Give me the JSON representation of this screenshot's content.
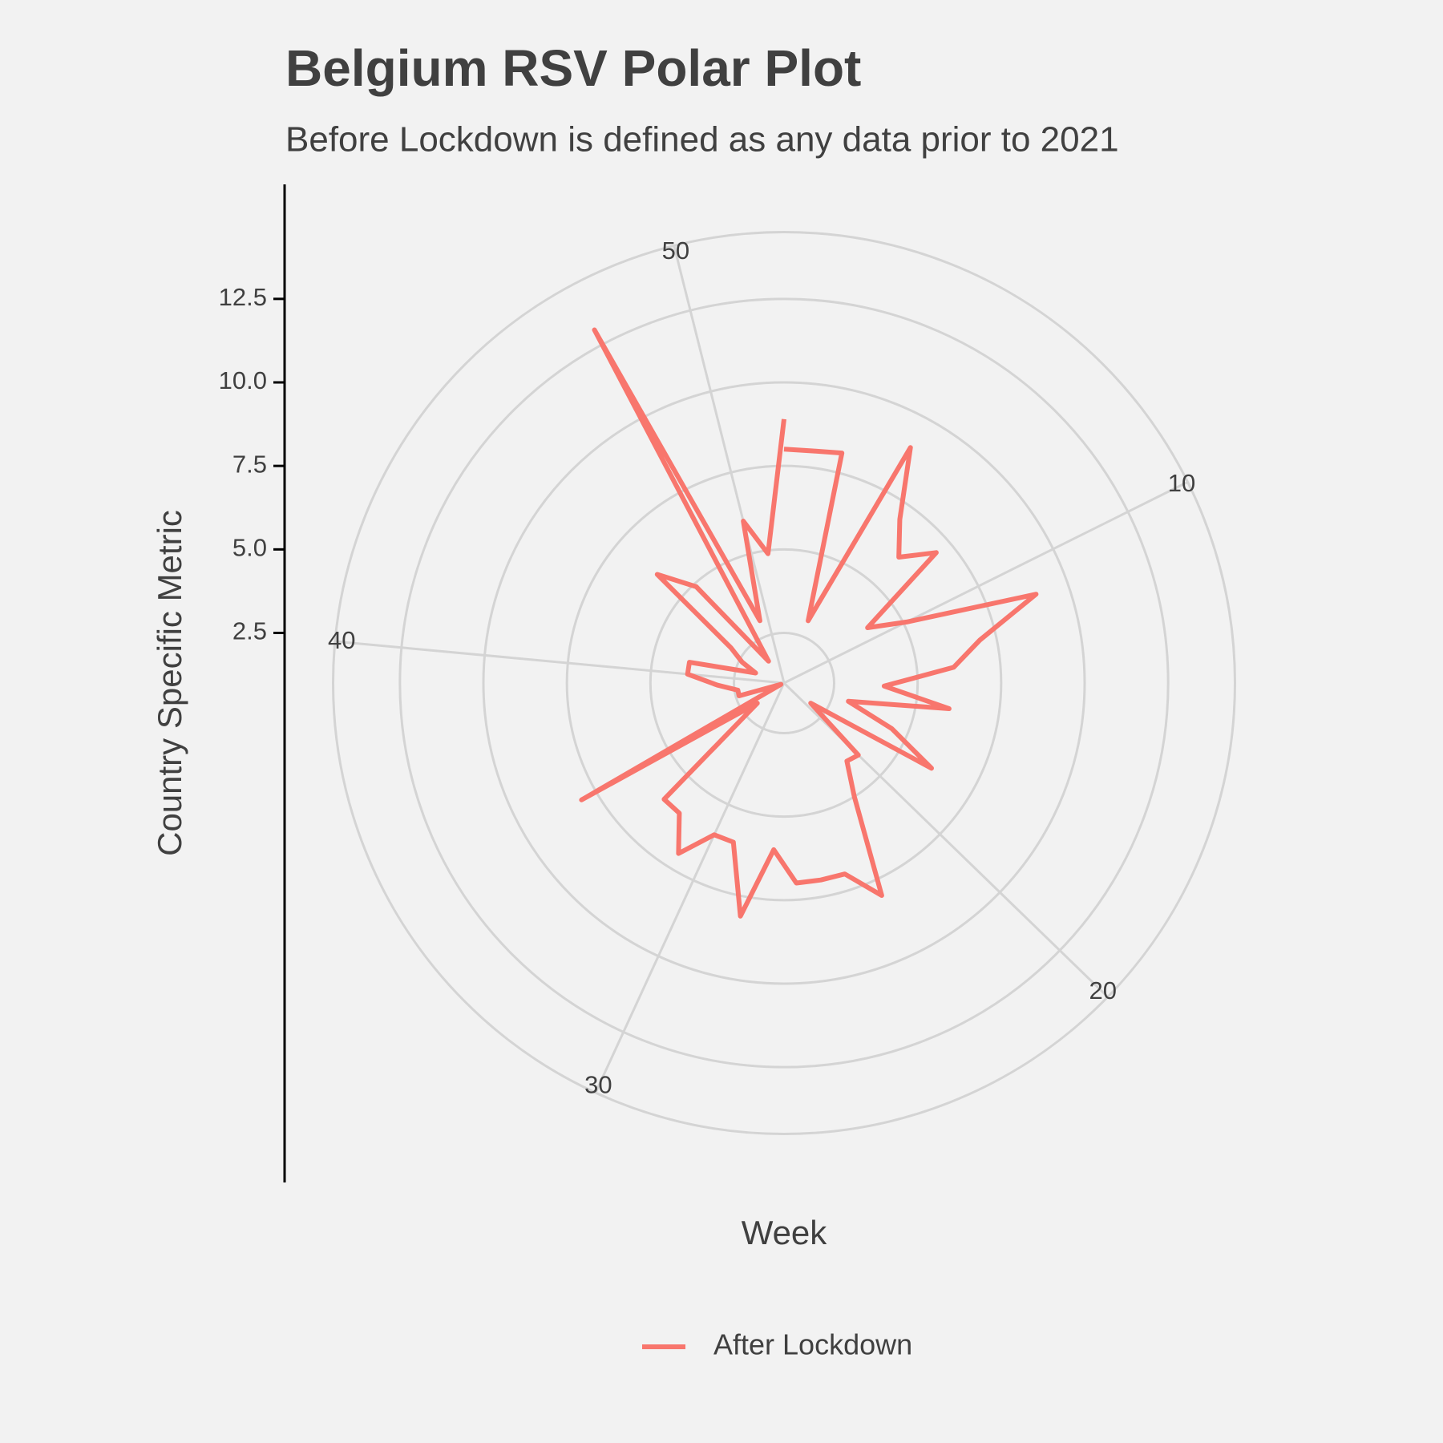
{
  "chart_data": {
    "type": "line",
    "coord": "polar",
    "title": "Belgium RSV Polar Plot",
    "subtitle": "Before Lockdown is defined as any data prior to 2021",
    "x_label": "Week",
    "y_label": "Country Specific Metric",
    "x": [
      1,
      2,
      3,
      4,
      5,
      6,
      7,
      8,
      9,
      10,
      11,
      12,
      13,
      14,
      15,
      16,
      17,
      18,
      19,
      20,
      21,
      22,
      23,
      24,
      25,
      26,
      27,
      28,
      29,
      30,
      31,
      32,
      33,
      34,
      35,
      36,
      37,
      38,
      39,
      40,
      41,
      42,
      43,
      44,
      45,
      46,
      47,
      48,
      49,
      50,
      51,
      52
    ],
    "xlim": [
      1,
      52
    ],
    "xticks": [
      10,
      20,
      30,
      40,
      50
    ],
    "ylim": [
      1,
      13
    ],
    "yticks": [
      2.5,
      {
        "value": 5,
        "label": "5.0"
      },
      7.5,
      {
        "value": 10,
        "label": "10.0"
      },
      12.5
    ],
    "series": [
      {
        "name": "After Lockdown",
        "color": "#f8766d",
        "values": [
          8.0,
          8.0,
          8.1,
          3.0,
          9.0,
          7.0,
          6.1,
          7.0,
          4.0,
          5.1,
          9.0,
          7.0,
          6.1,
          4.0,
          6.0,
          3.0,
          4.5,
          6.1,
          2.0,
          4.1,
          4.0,
          5.0,
          8.0,
          7.0,
          7.0,
          7.0,
          6.0,
          8.1,
          6.0,
          6.0,
          7.0,
          6.0,
          6.0,
          2.0,
          8.0,
          1.1,
          2.4,
          2.4,
          3.0,
          3.9,
          3.9,
          1.9,
          2.4,
          2.9,
          6.0,
          4.9,
          1.8,
          13.0,
          3.0,
          6.0,
          4.9,
          8.9
        ]
      }
    ],
    "grid": true,
    "legend": "bottom"
  }
}
